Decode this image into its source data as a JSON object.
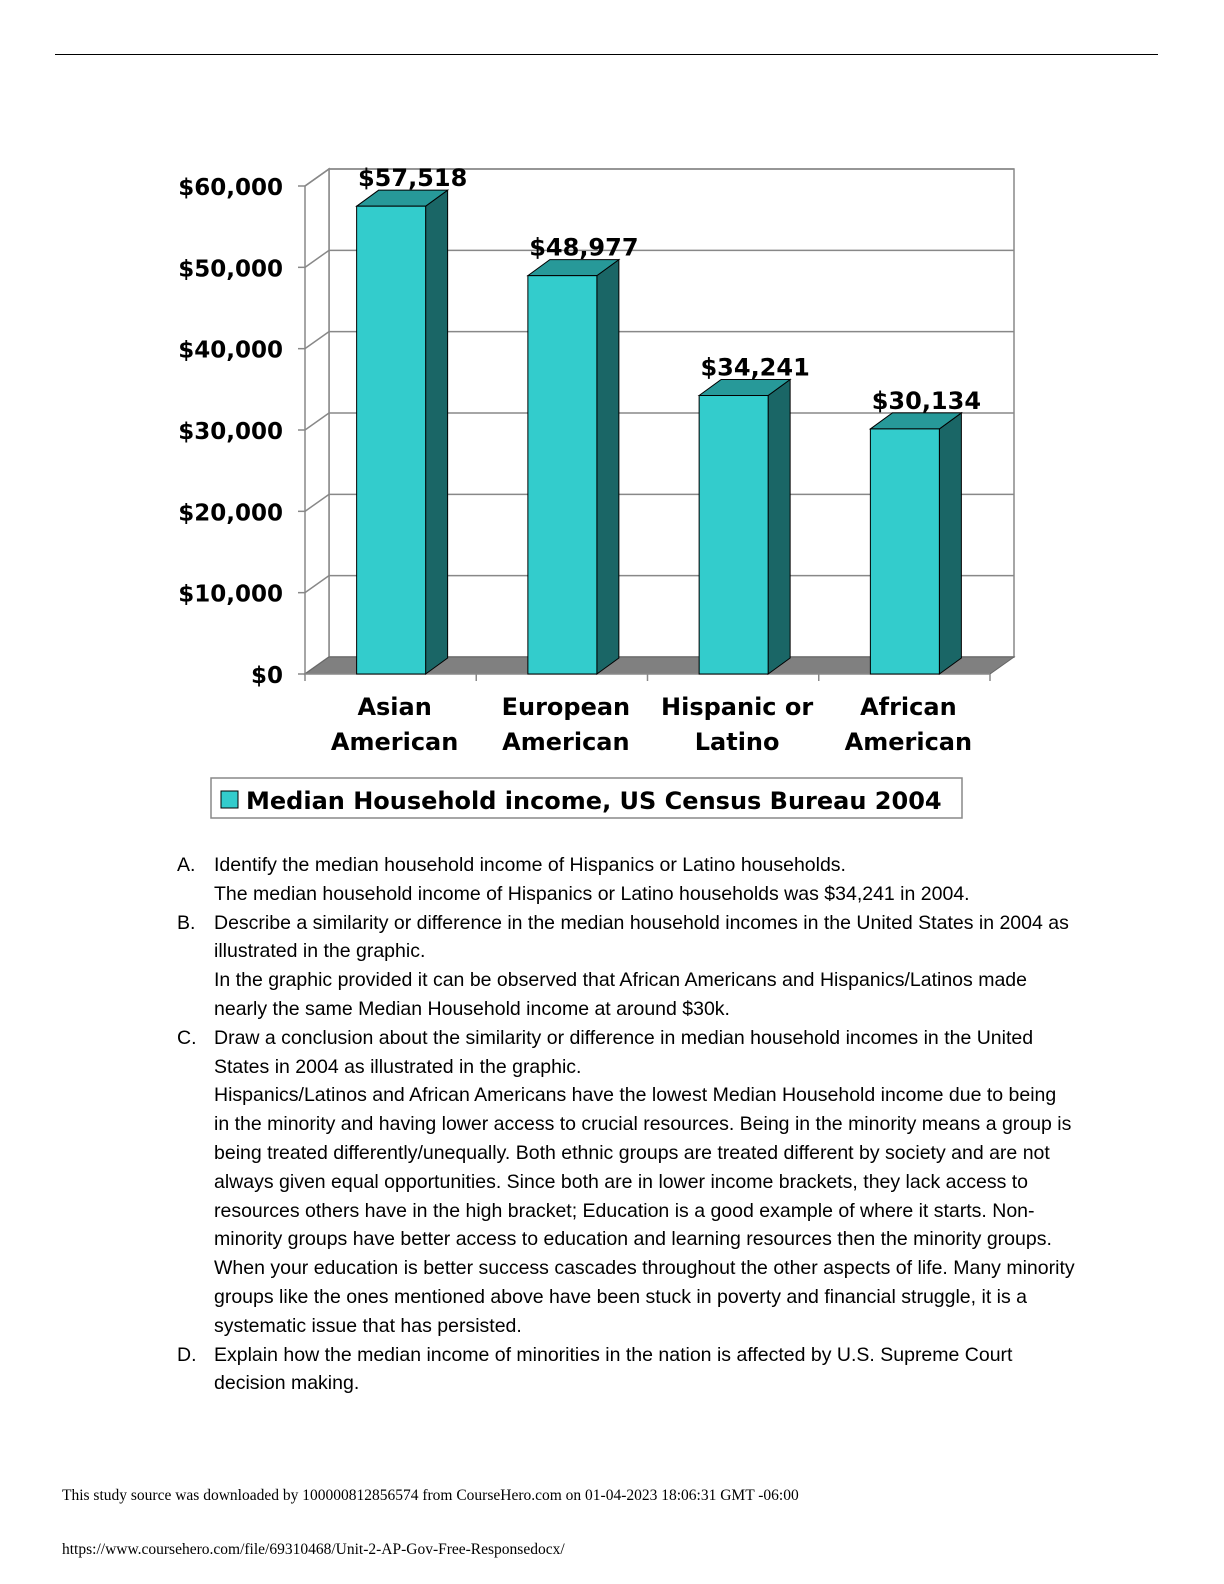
{
  "chart_data": {
    "type": "bar",
    "categories": [
      [
        "Asian",
        "American"
      ],
      [
        "European",
        "American"
      ],
      [
        "Hispanic or",
        "Latino"
      ],
      [
        "African",
        "American"
      ]
    ],
    "values": [
      57518,
      48977,
      34241,
      30134
    ],
    "value_labels": [
      "$57,518",
      "$48,977",
      "$34,241",
      "$30,134"
    ],
    "y_ticks": [
      0,
      10000,
      20000,
      30000,
      40000,
      50000,
      60000
    ],
    "y_tick_labels": [
      "$0",
      "$10,000",
      "$20,000",
      "$30,000",
      "$40,000",
      "$50,000",
      "$60,000"
    ],
    "ylim": [
      0,
      60000
    ],
    "legend": "Median Household income, US Census Bureau 2004",
    "legend_position": "bottom",
    "grid": true,
    "bar_color": "#33cccc",
    "bar_side_color": "#1a6666",
    "bar_top_color": "#279999"
  },
  "questions": [
    {
      "letter": "A.",
      "lines": [
        "Identify the median household income of Hispanics or Latino households.",
        "The median household income of Hispanics or Latino households was $34,241 in 2004."
      ]
    },
    {
      "letter": "B.",
      "lines": [
        "Describe a similarity or difference in the median household incomes in the United States in 2004 as illustrated in the graphic.",
        "In the graphic provided it can be observed that African Americans and Hispanics/Latinos made nearly the same Median Household income at around $30k."
      ]
    },
    {
      "letter": "C.",
      "lines": [
        "Draw a conclusion about the similarity or difference in median household incomes in the United States in 2004 as illustrated in the graphic.",
        "Hispanics/Latinos and African Americans have the lowest Median Household income due to being in the minority and having lower access to crucial resources.  Being in the minority means a group is being treated differently/unequally.  Both ethnic groups are treated different by society and are not always given equal opportunities.  Since both are in lower income brackets, they lack access to resources others have in the high bracket; Education is a good example of where it starts.  Non-minority groups have better access to education and learning resources then the minority groups.  When your education is better success cascades throughout the other aspects of life.  Many minority groups like the ones mentioned above have been stuck in poverty and financial struggle, it is a systematic issue that has persisted."
      ]
    },
    {
      "letter": "D.",
      "lines": [
        "Explain how the median income of minorities in the nation is affected by U.S. Supreme Court decision making."
      ]
    }
  ],
  "footer": {
    "source": "This study source was downloaded by 100000812856574 from CourseHero.com on 01-04-2023 18:06:31 GMT -06:00",
    "url": "https://www.coursehero.com/file/69310468/Unit-2-AP-Gov-Free-Responsedocx/"
  }
}
